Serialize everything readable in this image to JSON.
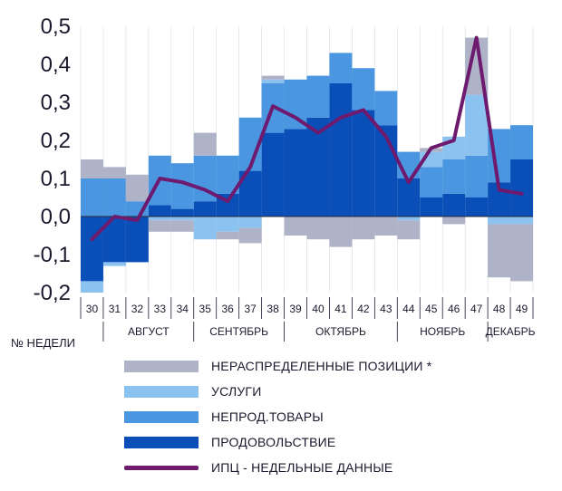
{
  "chart_data": {
    "type": "bar",
    "stacked": true,
    "ylim": [
      -0.2,
      0.5
    ],
    "yticks": [
      "0,5",
      "0,4",
      "0,3",
      "0,2",
      "0,1",
      "0,0",
      "-0,1",
      "-0,2"
    ],
    "ytick_values": [
      0.5,
      0.4,
      0.3,
      0.2,
      0.1,
      0.0,
      -0.1,
      -0.2
    ],
    "xlabel": "№ НЕДЕЛИ",
    "categories": [
      "30",
      "31",
      "32",
      "33",
      "34",
      "35",
      "36",
      "37",
      "38",
      "39",
      "40",
      "41",
      "42",
      "43",
      "44",
      "45",
      "46",
      "47",
      "48",
      "49"
    ],
    "months": [
      {
        "label": "АВГУСТ",
        "start": 1,
        "end": 4
      },
      {
        "label": "СЕНТЯБРЬ",
        "start": 5,
        "end": 8
      },
      {
        "label": "ОКТЯБРЬ",
        "start": 9,
        "end": 13
      },
      {
        "label": "НОЯБРЬ",
        "start": 14,
        "end": 17
      },
      {
        "label": "ДЕКАБРЬ",
        "start": 18,
        "end": 19
      }
    ],
    "series": [
      {
        "name": "ПРОДОВОЛЬСТВИЕ",
        "color": "#0a4fb8",
        "values": [
          -0.17,
          -0.12,
          -0.12,
          0.03,
          0.02,
          0.04,
          0.06,
          0.12,
          0.22,
          0.23,
          0.26,
          0.35,
          0.28,
          0.24,
          0.1,
          0.05,
          0.06,
          0.05,
          0.09,
          0.15
        ]
      },
      {
        "name": "НЕПРОД.ТОВАРЫ",
        "color": "#4a96e0",
        "values": [
          0.1,
          0.1,
          0.04,
          0.13,
          0.12,
          0.12,
          0.1,
          0.14,
          0.13,
          0.13,
          0.11,
          0.08,
          0.11,
          0.09,
          0.07,
          0.08,
          0.09,
          0.11,
          0.14,
          0.09
        ]
      },
      {
        "name": "УСЛУГИ",
        "color": "#8cc2f0",
        "values": [
          -0.03,
          -0.01,
          0.0,
          -0.01,
          -0.01,
          -0.06,
          -0.04,
          -0.03,
          0.01,
          0.0,
          0.0,
          0.0,
          0.0,
          0.0,
          -0.01,
          0.04,
          0.06,
          0.16,
          -0.02,
          -0.02
        ]
      },
      {
        "name": "НЕРАСПРЕДЕЛЕННЫЕ ПОЗИЦИИ *",
        "color": "#aeb3c8",
        "values": [
          0.05,
          0.03,
          0.07,
          -0.03,
          -0.03,
          0.06,
          -0.02,
          -0.04,
          0.01,
          -0.05,
          -0.06,
          -0.08,
          -0.06,
          -0.05,
          -0.05,
          0.01,
          -0.02,
          0.15,
          -0.14,
          -0.15
        ]
      }
    ],
    "line": {
      "name": "ИПЦ - НЕДЕЛЬНЫЕ ДАННЫЕ",
      "color": "#6e1a6e",
      "values": [
        -0.06,
        0.0,
        -0.01,
        0.1,
        0.09,
        0.07,
        0.04,
        0.13,
        0.29,
        0.26,
        0.22,
        0.26,
        0.28,
        0.21,
        0.09,
        0.18,
        0.2,
        0.47,
        0.07,
        0.06
      ]
    }
  },
  "legend": [
    {
      "label": "НЕРАСПРЕДЕЛЕННЫЕ ПОЗИЦИИ *",
      "color": "#aeb3c8",
      "kind": "bar"
    },
    {
      "label": "УСЛУГИ",
      "color": "#8cc2f0",
      "kind": "bar"
    },
    {
      "label": "НЕПРОД.ТОВАРЫ",
      "color": "#4a96e0",
      "kind": "bar"
    },
    {
      "label": "ПРОДОВОЛЬСТВИЕ",
      "color": "#0a4fb8",
      "kind": "bar"
    },
    {
      "label": "ИПЦ - НЕДЕЛЬНЫЕ ДАННЫЕ",
      "color": "#6e1a6e",
      "kind": "line"
    }
  ]
}
